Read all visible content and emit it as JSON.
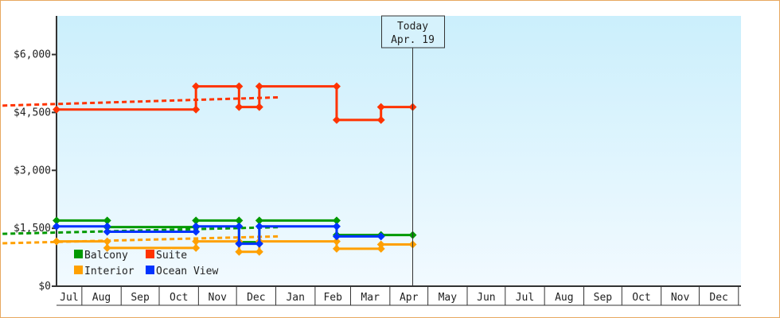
{
  "chart_data": {
    "type": "line",
    "title": "",
    "xlabel": "",
    "ylabel": "",
    "y_ticks": [
      "$0",
      "$1,500",
      "$3,000",
      "$4,500",
      "$6,000"
    ],
    "y_tick_values": [
      0,
      1500,
      3000,
      4500,
      6000
    ],
    "ylim": [
      0,
      7000
    ],
    "x_range": [
      "Jul 12",
      "Jan 3"
    ],
    "x_ticks": [
      "Jul",
      "Aug",
      "Sep",
      "Oct",
      "Nov",
      "Dec",
      "Jan",
      "Feb",
      "Mar",
      "Apr",
      "May",
      "Jun",
      "Jul",
      "Aug",
      "Sep",
      "Oct",
      "Nov",
      "Dec"
    ],
    "grid": false,
    "legend_placement": "bottom-left",
    "today_marker": {
      "line1": "Today",
      "line2": "Apr. 19",
      "date": "Apr 19"
    },
    "series": [
      {
        "name": "Balcony",
        "color": "#009900",
        "style": "step",
        "points": [
          [
            "Jul 12",
            1700
          ],
          [
            "Aug 21",
            1530
          ],
          [
            "Oct 30",
            1700
          ],
          [
            "Dec 3",
            1140
          ],
          [
            "Dec 19",
            1700
          ],
          [
            "Feb 18",
            1325
          ],
          [
            "Mar 25",
            1325
          ],
          [
            "Apr 19",
            1325
          ]
        ],
        "forecast": [
          [
            "Apr 19",
            1325
          ],
          [
            "Jan 3",
            1530
          ]
        ]
      },
      {
        "name": "Suite",
        "color": "#ff3300",
        "style": "step",
        "points": [
          [
            "Jul 12",
            4575
          ],
          [
            "Oct 30",
            5175
          ],
          [
            "Dec 3",
            4640
          ],
          [
            "Dec 19",
            5175
          ],
          [
            "Feb 18",
            4305
          ],
          [
            "Mar 25",
            4640
          ],
          [
            "Apr 19",
            4640
          ]
        ],
        "forecast": [
          [
            "Apr 19",
            4640
          ],
          [
            "Jan 3",
            4890
          ]
        ]
      },
      {
        "name": "Interior",
        "color": "#ffa000",
        "style": "step",
        "points": [
          [
            "Jul 12",
            1160
          ],
          [
            "Aug 21",
            990
          ],
          [
            "Oct 30",
            1160
          ],
          [
            "Dec 3",
            890
          ],
          [
            "Dec 19",
            1160
          ],
          [
            "Feb 18",
            970
          ],
          [
            "Mar 25",
            1080
          ],
          [
            "Apr 19",
            1080
          ]
        ],
        "forecast": [
          [
            "Apr 19",
            1080
          ],
          [
            "Jan 3",
            1290
          ]
        ]
      },
      {
        "name": "Ocean View",
        "color": "#0033ff",
        "style": "step",
        "points": [
          [
            "Jul 12",
            1550
          ],
          [
            "Aug 21",
            1410
          ],
          [
            "Oct 30",
            1550
          ],
          [
            "Dec 3",
            1100
          ],
          [
            "Dec 19",
            1550
          ],
          [
            "Feb 18",
            1290
          ],
          [
            "Mar 25",
            1290
          ]
        ],
        "forecast": []
      }
    ]
  }
}
